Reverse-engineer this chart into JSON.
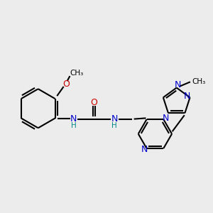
{
  "bg_color": "#ececec",
  "bond_color": "#000000",
  "n_color": "#0000cc",
  "o_color": "#cc0000",
  "c_color": "#000000",
  "line_width": 1.5,
  "font_size_atom": 9,
  "font_size_small": 7.5,
  "xlim": [
    -2.6,
    2.8
  ],
  "ylim": [
    -1.6,
    1.8
  ]
}
